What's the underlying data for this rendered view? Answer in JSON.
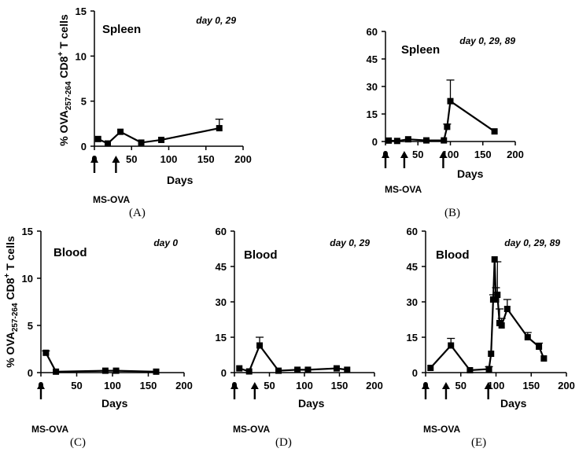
{
  "figure": {
    "y_axis_label_prefix": "% OVA",
    "y_axis_label_sub": "257-264",
    "y_axis_label_mid": " CD8",
    "y_axis_label_sup": "+",
    "y_axis_label_suffix": " T cells",
    "arrow_label": "MS-OVA"
  },
  "chart_data": [
    {
      "id": "A",
      "type": "line",
      "caption": "(A)",
      "tissue": "Spleen",
      "schedule": "day 0, 29",
      "xlabel": "Days",
      "xlim": [
        0,
        200
      ],
      "ylim": [
        0,
        15
      ],
      "xticks": [
        0,
        50,
        100,
        150,
        200
      ],
      "yticks": [
        0,
        5,
        10,
        15
      ],
      "x": [
        5,
        18,
        35,
        63,
        90,
        168
      ],
      "y": [
        0.8,
        0.3,
        1.6,
        0.4,
        0.7,
        2.0
      ],
      "err": [
        0,
        0,
        0,
        0,
        0,
        1.0
      ],
      "injections": [
        0,
        29
      ]
    },
    {
      "id": "B",
      "type": "line",
      "caption": "(B)",
      "tissue": "Spleen",
      "schedule": "day 0, 29, 89",
      "xlabel": "Days",
      "xlim": [
        0,
        200
      ],
      "ylim": [
        0,
        60
      ],
      "xticks": [
        0,
        50,
        100,
        150,
        200
      ],
      "yticks": [
        0,
        15,
        30,
        45,
        60
      ],
      "x": [
        5,
        18,
        35,
        63,
        90,
        95,
        100,
        168
      ],
      "y": [
        0.5,
        0.3,
        1.2,
        0.6,
        0.6,
        8,
        22,
        5.5
      ],
      "err": [
        0,
        0,
        0,
        0,
        0,
        1.5,
        11.5,
        0
      ],
      "injections": [
        0,
        29,
        89
      ]
    },
    {
      "id": "C",
      "type": "line",
      "caption": "(C)",
      "tissue": "Blood",
      "schedule": "day 0",
      "xlabel": "Days",
      "xlim": [
        0,
        200
      ],
      "ylim": [
        0,
        15
      ],
      "xticks": [
        0,
        50,
        100,
        150,
        200
      ],
      "yticks": [
        0,
        5,
        10,
        15
      ],
      "x": [
        7,
        21,
        90,
        105,
        161
      ],
      "y": [
        2.1,
        0.1,
        0.2,
        0.2,
        0.1
      ],
      "err": [
        0.2,
        0,
        0,
        0,
        0
      ],
      "injections": [
        0
      ]
    },
    {
      "id": "D",
      "type": "line",
      "caption": "(D)",
      "tissue": "Blood",
      "schedule": "day 0, 29",
      "xlabel": "Days",
      "xlim": [
        0,
        200
      ],
      "ylim": [
        0,
        60
      ],
      "xticks": [
        0,
        50,
        100,
        150,
        200
      ],
      "yticks": [
        0,
        15,
        30,
        45,
        60
      ],
      "x": [
        7,
        21,
        36,
        63,
        90,
        105,
        146,
        161
      ],
      "y": [
        1.8,
        0.5,
        11.5,
        0.8,
        1.2,
        1.2,
        1.8,
        1.2
      ],
      "err": [
        0,
        0,
        3.5,
        0,
        0,
        0,
        0,
        0
      ],
      "injections": [
        0,
        29
      ]
    },
    {
      "id": "E",
      "type": "line",
      "caption": "(E)",
      "tissue": "Blood",
      "schedule": "day 0, 29, 89",
      "xlabel": "Days",
      "xlim": [
        0,
        200
      ],
      "ylim": [
        0,
        60
      ],
      "xticks": [
        0,
        50,
        100,
        150,
        200
      ],
      "yticks": [
        0,
        15,
        30,
        45,
        60
      ],
      "x": [
        7,
        36,
        63,
        90,
        93,
        96,
        98,
        100,
        102,
        105,
        108,
        116,
        145,
        161,
        168
      ],
      "y": [
        2,
        11.5,
        1,
        1.5,
        8,
        31,
        48,
        31,
        33,
        21,
        20,
        27,
        15,
        11,
        6
      ],
      "err": [
        0,
        3,
        0,
        1,
        0,
        2,
        0,
        5,
        14,
        6,
        3,
        4,
        2,
        1.5,
        0
      ],
      "injections": [
        0,
        29,
        89
      ]
    }
  ]
}
